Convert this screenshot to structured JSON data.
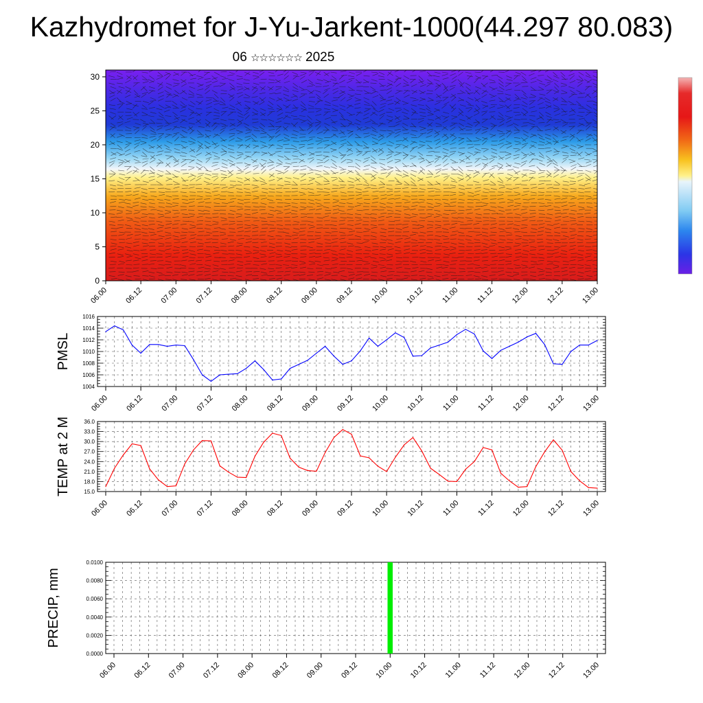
{
  "header": {
    "title": "Kazhydromet for J-Yu-Jarkent-1000(44.297 80.083)",
    "date_day": "06",
    "date_stars": "☆☆☆☆☆☆",
    "date_year": "2025"
  },
  "time_ticks": [
    "06.00",
    "06.12",
    "07.00",
    "07.12",
    "08.00",
    "08.12",
    "09.00",
    "09.12",
    "10.00",
    "10.12",
    "11.00",
    "11.12",
    "12.00",
    "12.12",
    "13.00"
  ],
  "chart_data": [
    {
      "type": "heatmap",
      "name": "cross-section",
      "ylim": [
        0,
        31
      ],
      "yticks": [
        "0",
        "5",
        "10",
        "15",
        "20",
        "25",
        "30"
      ],
      "ytick_values": [
        0,
        5,
        10,
        15,
        20,
        25,
        30
      ],
      "colors": {
        "low": "#ea1c1c",
        "mid": "#fff4a0",
        "high": "#6a1fe6"
      },
      "grid": false,
      "legend": "colorbar, right"
    },
    {
      "type": "line",
      "ylabel": "PMSL",
      "ylim": [
        1004,
        1016
      ],
      "yticks": [
        "1004",
        "1006",
        "1008",
        "1010",
        "1012",
        "1014",
        "1016"
      ],
      "ytick_values": [
        1004,
        1006,
        1008,
        1010,
        1012,
        1014,
        1016
      ],
      "color": "#0000ff",
      "grid": true,
      "x_step_hours": 3,
      "values": [
        1013.4,
        1014.4,
        1013.7,
        1011.1,
        1009.7,
        1011.2,
        1011.2,
        1010.9,
        1011.1,
        1011.0,
        1008.6,
        1006.0,
        1004.9,
        1006.0,
        1006.1,
        1006.2,
        1007.1,
        1008.4,
        1006.9,
        1005.1,
        1005.3,
        1007.1,
        1007.8,
        1008.5,
        1009.7,
        1010.9,
        1009.2,
        1007.8,
        1008.4,
        1010.1,
        1012.3,
        1010.9,
        1012.0,
        1013.2,
        1012.4,
        1009.2,
        1009.3,
        1010.6,
        1011.1,
        1011.6,
        1012.9,
        1013.8,
        1013.0,
        1010.1,
        1008.8,
        1010.2,
        1010.9,
        1011.6,
        1012.5,
        1013.1,
        1011.2,
        1007.9,
        1007.8,
        1010.0,
        1011.1,
        1011.1,
        1011.9
      ]
    },
    {
      "type": "line",
      "ylabel": "TEMP at 2 M",
      "ylim": [
        15,
        36
      ],
      "yticks": [
        "15.0",
        "18.0",
        "21.0",
        "24.0",
        "27.0",
        "30.0",
        "33.0",
        "36.0"
      ],
      "ytick_values": [
        15,
        18,
        21,
        24,
        27,
        30,
        33,
        36
      ],
      "color": "#ff0000",
      "grid": true,
      "x_step_hours": 3,
      "values": [
        16.5,
        22.0,
        26.0,
        29.3,
        28.8,
        21.8,
        18.5,
        16.5,
        16.7,
        23.3,
        27.5,
        30.3,
        30.2,
        22.7,
        20.8,
        19.3,
        19.2,
        25.6,
        29.8,
        32.5,
        31.8,
        25.0,
        22.3,
        21.3,
        21.1,
        26.7,
        31.2,
        33.6,
        32.2,
        25.7,
        25.1,
        22.6,
        21.0,
        25.3,
        29.0,
        31.2,
        27.2,
        22.0,
        20.1,
        18.1,
        18.0,
        21.7,
        24.0,
        28.2,
        27.5,
        20.5,
        18.2,
        16.3,
        16.5,
        22.5,
        26.9,
        30.5,
        27.4,
        21.0,
        18.2,
        16.2,
        16.0
      ]
    },
    {
      "type": "bar",
      "ylabel": "PRECIP, mm",
      "ylim": [
        0,
        0.01
      ],
      "yticks": [
        "0.0000",
        "0.0020",
        "0.0040",
        "0.0060",
        "0.0080",
        "0.0100"
      ],
      "ytick_values": [
        0,
        0.002,
        0.004,
        0.006,
        0.008,
        0.01
      ],
      "color": "#00ee00",
      "grid": true,
      "x_step_hours": 3,
      "values": [
        0,
        0,
        0,
        0,
        0,
        0,
        0,
        0,
        0,
        0,
        0,
        0,
        0,
        0,
        0,
        0,
        0,
        0,
        0,
        0,
        0,
        0,
        0,
        0,
        0,
        0,
        0,
        0,
        0,
        0,
        0,
        0,
        0.01,
        0,
        0,
        0,
        0,
        0,
        0,
        0,
        0,
        0,
        0,
        0,
        0,
        0,
        0,
        0,
        0,
        0,
        0,
        0,
        0,
        0,
        0,
        0,
        0
      ]
    }
  ],
  "colorbar": {
    "stops": [
      "#6a1fe6",
      "#2b35e6",
      "#2c86ee",
      "#9ad8f5",
      "#ffffff",
      "#fff18a",
      "#f7b51b",
      "#f15a16",
      "#e61717",
      "#f4a8a8"
    ]
  }
}
